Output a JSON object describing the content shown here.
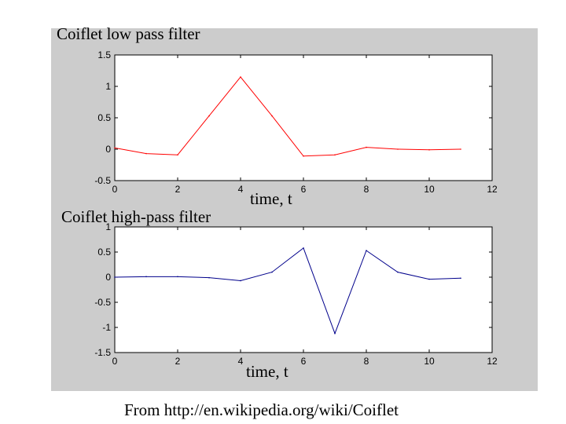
{
  "figure": {
    "source_caption": "From http://en.wikipedia.org/wiki/Coiflet"
  },
  "chart_data": [
    {
      "type": "line",
      "title": "Coiflet low pass filter",
      "xlabel": "time, t",
      "ylabel": "",
      "xlim": [
        0,
        12
      ],
      "ylim": [
        -0.5,
        1.5
      ],
      "xticks": [
        "0",
        "2",
        "4",
        "6",
        "8",
        "10",
        "12"
      ],
      "yticks": [
        "-0.5",
        "0",
        "0.5",
        "1",
        "1.5"
      ],
      "grid": false,
      "color": "#ff0000",
      "x": [
        0,
        1,
        2,
        3,
        4,
        5,
        6,
        7,
        8,
        9,
        10,
        11
      ],
      "y": [
        0.02,
        -0.07,
        -0.09,
        0.53,
        1.15,
        0.53,
        -0.11,
        -0.09,
        0.03,
        0.0,
        -0.01,
        0.0
      ]
    },
    {
      "type": "line",
      "title": "Coiflet high-pass filter",
      "xlabel": "time, t",
      "ylabel": "",
      "xlim": [
        0,
        12
      ],
      "ylim": [
        -1.5,
        1
      ],
      "xticks": [
        "0",
        "2",
        "4",
        "6",
        "8",
        "10",
        "12"
      ],
      "yticks": [
        "-1.5",
        "-1",
        "-0.5",
        "0",
        "0.5",
        "1"
      ],
      "grid": false,
      "color": "#00008b",
      "x": [
        0,
        1,
        2,
        3,
        4,
        5,
        6,
        7,
        8,
        9,
        10,
        11
      ],
      "y": [
        0.0,
        0.01,
        0.01,
        -0.01,
        -0.07,
        0.1,
        0.58,
        -1.12,
        0.53,
        0.1,
        -0.04,
        -0.02
      ]
    }
  ]
}
